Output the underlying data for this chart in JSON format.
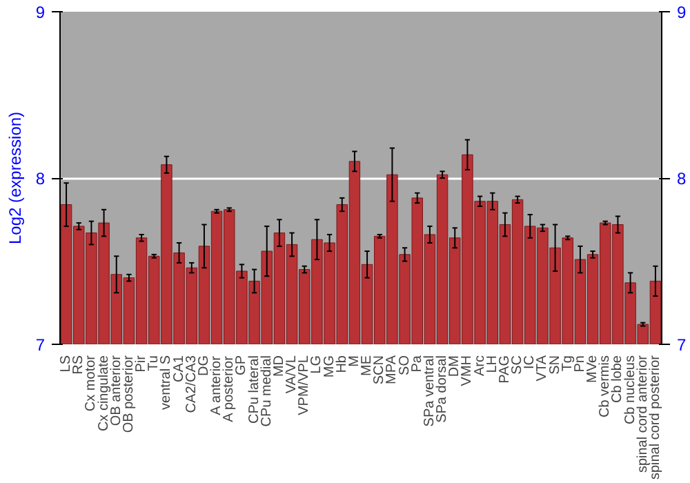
{
  "chart_data": {
    "type": "bar",
    "ylabel": "Log2 (expression)",
    "categories": [
      "LS",
      "RS",
      "Cx motor",
      "Cx cingulate",
      "OB anterior",
      "OB posterior",
      "Pir",
      "Tu",
      "ventral S",
      "CA1",
      "CA2/CA3",
      "DG",
      "A anterior",
      "A posterior",
      "GP",
      "CPu lateral",
      "CPu medial",
      "MD",
      "VA/VL",
      "VPM/VPL",
      "LG",
      "MG",
      "Hb",
      "M",
      "ME",
      "SCN",
      "MPA",
      "SO",
      "Pa",
      "SPa ventral",
      "SPa dorsal",
      "DM",
      "VMH",
      "Arc",
      "LH",
      "PAG",
      "SC",
      "IC",
      "VTA",
      "SN",
      "Tg",
      "Pn",
      "MVe",
      "Cb vermis",
      "Cb lobe",
      "Cb nucleus",
      "spinal cord anterior",
      "spinal cord posterior"
    ],
    "values": [
      7.84,
      7.71,
      7.67,
      7.73,
      7.42,
      7.4,
      7.64,
      7.53,
      8.08,
      7.55,
      7.46,
      7.59,
      7.8,
      7.81,
      7.44,
      7.38,
      7.56,
      7.67,
      7.6,
      7.45,
      7.63,
      7.61,
      7.84,
      8.1,
      7.48,
      7.65,
      8.02,
      7.54,
      7.88,
      7.66,
      8.02,
      7.64,
      8.14,
      7.86,
      7.86,
      7.72,
      7.87,
      7.71,
      7.7,
      7.58,
      7.64,
      7.51,
      7.54,
      7.73,
      7.72,
      7.37,
      7.12,
      7.38
    ],
    "errors": [
      0.13,
      0.02,
      0.07,
      0.08,
      0.11,
      0.02,
      0.02,
      0.01,
      0.05,
      0.06,
      0.03,
      0.13,
      0.01,
      0.01,
      0.04,
      0.07,
      0.15,
      0.08,
      0.07,
      0.02,
      0.12,
      0.05,
      0.04,
      0.06,
      0.08,
      0.01,
      0.16,
      0.04,
      0.03,
      0.05,
      0.02,
      0.06,
      0.09,
      0.03,
      0.05,
      0.07,
      0.02,
      0.07,
      0.02,
      0.14,
      0.01,
      0.08,
      0.02,
      0.01,
      0.05,
      0.06,
      0.01,
      0.09
    ],
    "color": "#b83236",
    "ylim": [
      7,
      9
    ],
    "yticks": [
      7,
      8,
      9
    ],
    "y2lim": [
      7,
      9
    ],
    "y2ticks": [
      7,
      8,
      9
    ],
    "grid": "y"
  }
}
